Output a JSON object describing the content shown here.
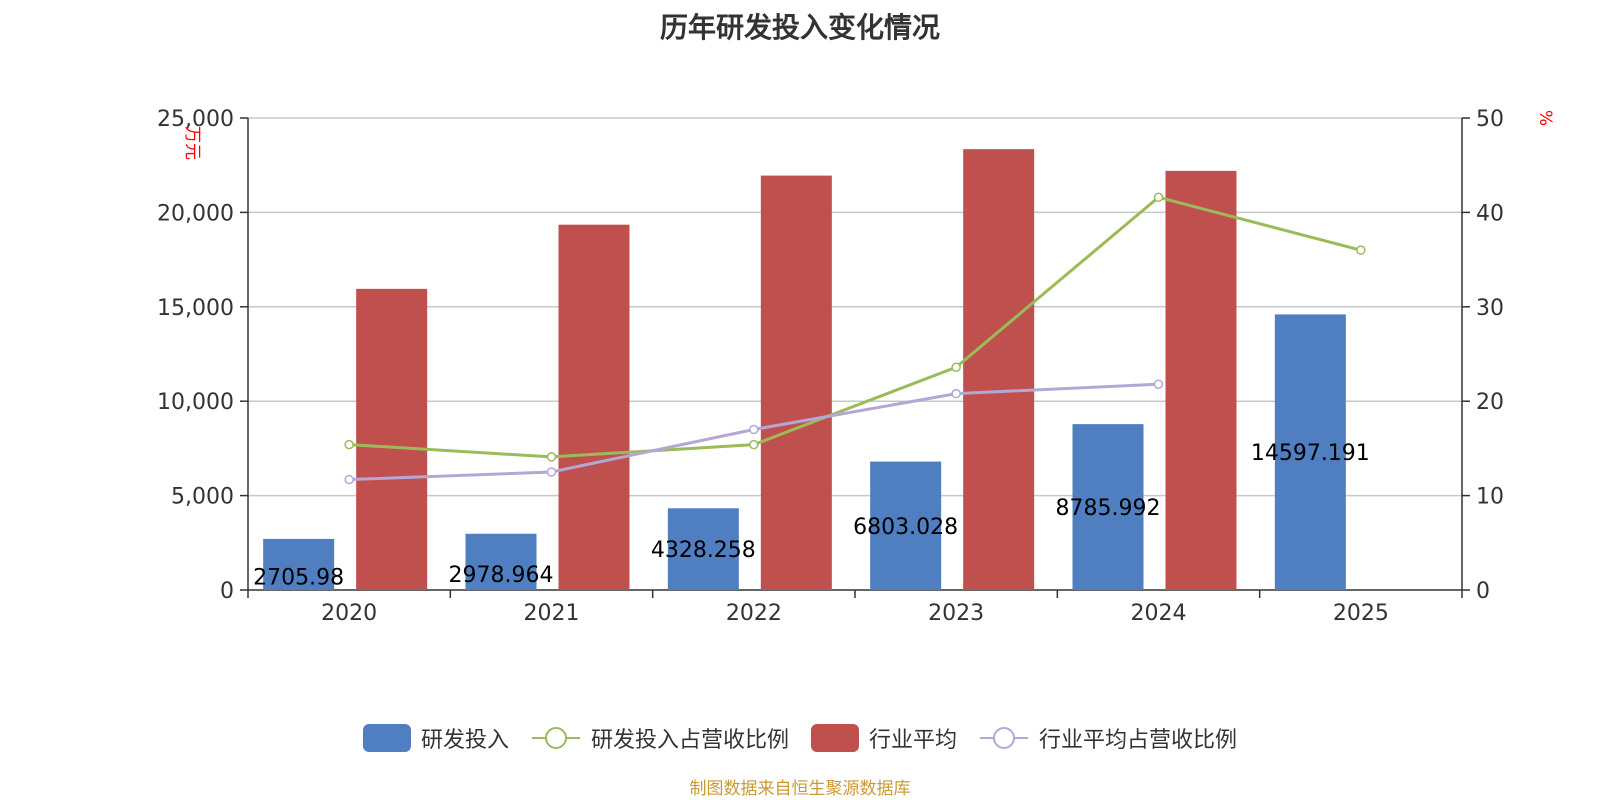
{
  "colors": {
    "rd": "#4f7fc0",
    "industry_avg": "#c0504d",
    "rd_ratio": "#9bbb59",
    "industry_ratio": "#b4a7d6",
    "axis_unit": "#ff0000",
    "source": "#cc9933"
  },
  "chart_data": {
    "type": "bar",
    "title": "历年研发投入变化情况",
    "categories": [
      "2020",
      "2021",
      "2022",
      "2023",
      "2024",
      "2025"
    ],
    "y_left": {
      "label": "万元",
      "ticks": [
        "0",
        "5,000",
        "10,000",
        "15,000",
        "20,000",
        "25,000"
      ],
      "ylim": [
        0,
        25000
      ]
    },
    "y_right": {
      "label": "%",
      "ticks": [
        "0",
        "10",
        "20",
        "30",
        "40",
        "50"
      ],
      "ylim": [
        0,
        50
      ]
    },
    "grid": true,
    "legend_position": "bottom-center",
    "series": [
      {
        "name": "研发投入",
        "type": "bar",
        "axis": "left",
        "color": "#4f7fc0",
        "values": [
          2705.98,
          2978.964,
          4328.258,
          6803.028,
          8785.992,
          14597.191
        ],
        "labels": [
          "2705.98",
          "2978.964",
          "4328.258",
          "6803.028",
          "8785.992",
          "14597.191"
        ]
      },
      {
        "name": "研发投入占营收比例",
        "type": "line",
        "axis": "right",
        "color": "#9bbb59",
        "values": [
          15.4,
          14.1,
          15.4,
          23.6,
          41.6,
          36.0
        ]
      },
      {
        "name": "行业平均",
        "type": "bar",
        "axis": "left",
        "color": "#c0504d",
        "values": [
          15950,
          19350,
          21950,
          23350,
          22200,
          null
        ]
      },
      {
        "name": "行业平均占营收比例",
        "type": "line",
        "axis": "right",
        "color": "#b4a7d6",
        "values": [
          11.7,
          12.5,
          17.0,
          20.8,
          21.8,
          null
        ]
      }
    ]
  },
  "source_text": "制图数据来自恒生聚源数据库"
}
